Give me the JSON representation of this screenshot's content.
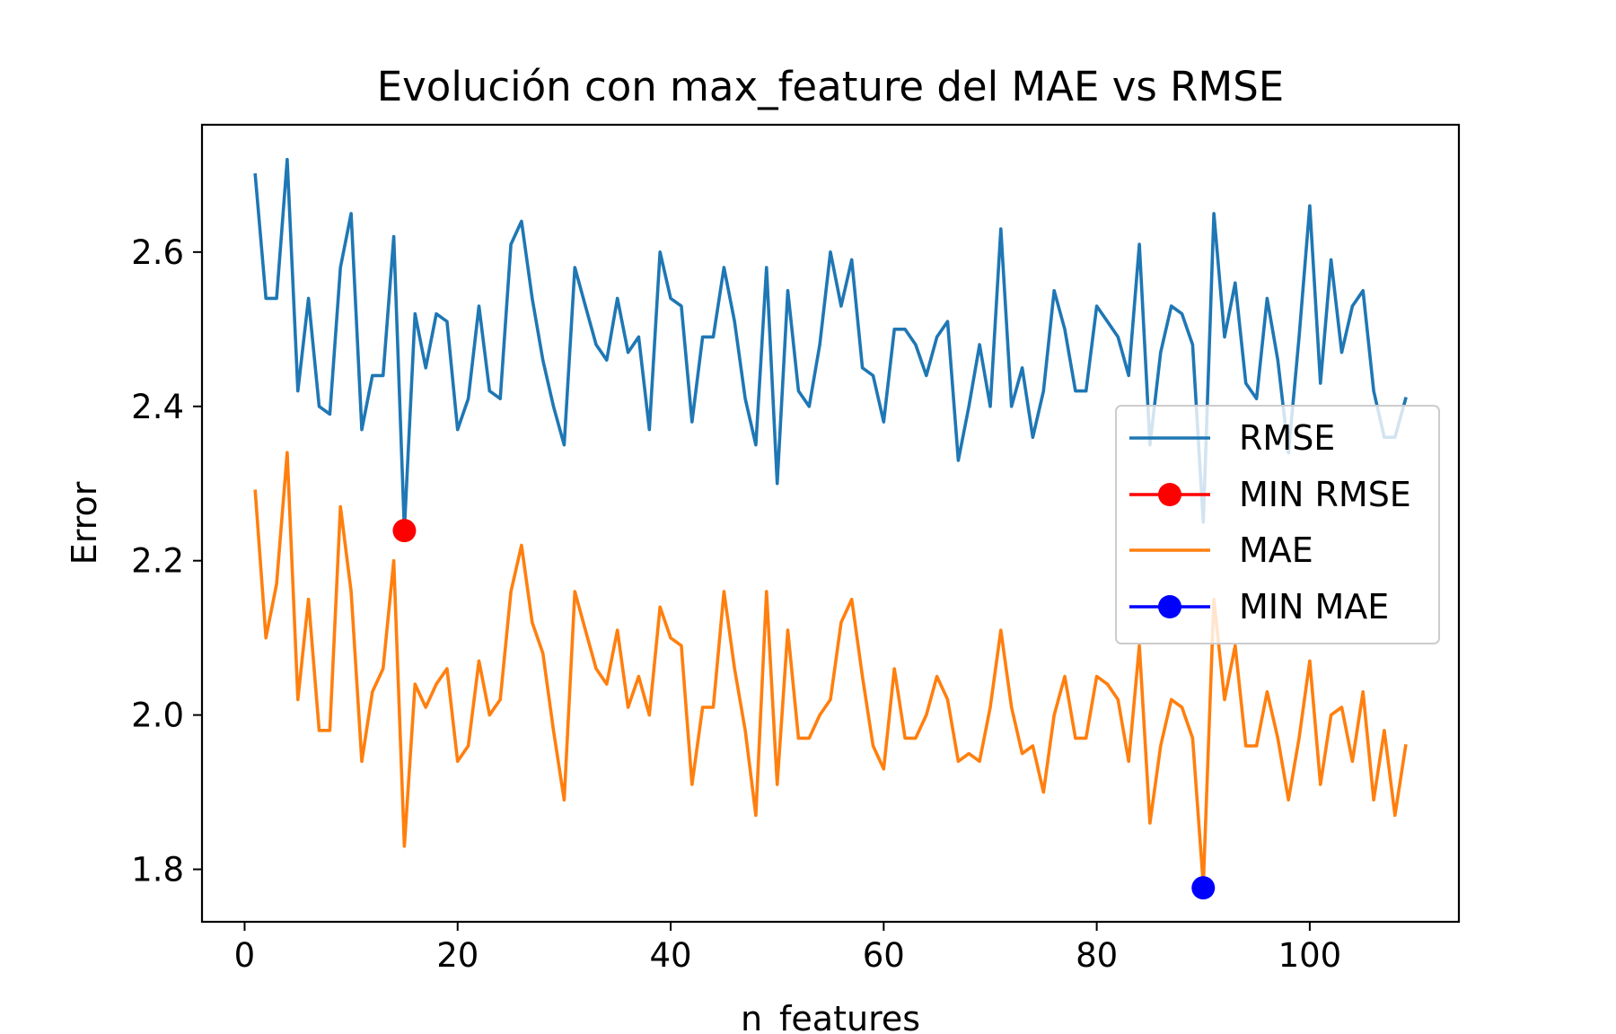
{
  "chart_data": {
    "type": "line",
    "title": "Evolución con max_feature del MAE vs RMSE",
    "xlabel": "n_features",
    "ylabel": "Error",
    "xlim": [
      -4,
      114
    ],
    "ylim": [
      1.732,
      2.765
    ],
    "xticks": [
      0,
      20,
      40,
      60,
      80,
      100
    ],
    "yticks": [
      1.8,
      2.0,
      2.2,
      2.4,
      2.6
    ],
    "ytick_labels": [
      "1.8",
      "2.0",
      "2.2",
      "2.4",
      "2.6"
    ],
    "grid": false,
    "legend_position": "center-right",
    "x": [
      1,
      2,
      3,
      4,
      5,
      6,
      7,
      8,
      9,
      10,
      11,
      12,
      13,
      14,
      15,
      16,
      17,
      18,
      19,
      20,
      21,
      22,
      23,
      24,
      25,
      26,
      27,
      28,
      29,
      30,
      31,
      32,
      33,
      34,
      35,
      36,
      37,
      38,
      39,
      40,
      41,
      42,
      43,
      44,
      45,
      46,
      47,
      48,
      49,
      50,
      51,
      52,
      53,
      54,
      55,
      56,
      57,
      58,
      59,
      60,
      61,
      62,
      63,
      64,
      65,
      66,
      67,
      68,
      69,
      70,
      71,
      72,
      73,
      74,
      75,
      76,
      77,
      78,
      79,
      80,
      81,
      82,
      83,
      84,
      85,
      86,
      87,
      88,
      89,
      90,
      91,
      92,
      93,
      94,
      95,
      96,
      97,
      98,
      99,
      100,
      101,
      102,
      103,
      104,
      105,
      106,
      107,
      108,
      109
    ],
    "series": [
      {
        "name": "RMSE",
        "color": "#1f77b4",
        "values": [
          2.7,
          2.54,
          2.54,
          2.72,
          2.42,
          2.54,
          2.4,
          2.39,
          2.58,
          2.65,
          2.37,
          2.44,
          2.44,
          2.62,
          2.24,
          2.52,
          2.45,
          2.52,
          2.51,
          2.37,
          2.41,
          2.53,
          2.42,
          2.41,
          2.61,
          2.64,
          2.54,
          2.46,
          2.4,
          2.35,
          2.58,
          2.53,
          2.48,
          2.46,
          2.54,
          2.47,
          2.49,
          2.37,
          2.6,
          2.54,
          2.53,
          2.38,
          2.49,
          2.49,
          2.58,
          2.51,
          2.41,
          2.35,
          2.58,
          2.3,
          2.55,
          2.42,
          2.4,
          2.48,
          2.6,
          2.53,
          2.59,
          2.45,
          2.44,
          2.38,
          2.5,
          2.5,
          2.48,
          2.44,
          2.49,
          2.51,
          2.33,
          2.4,
          2.48,
          2.4,
          2.63,
          2.4,
          2.45,
          2.36,
          2.42,
          2.55,
          2.5,
          2.42,
          2.42,
          2.53,
          2.51,
          2.49,
          2.44,
          2.61,
          2.35,
          2.47,
          2.53,
          2.52,
          2.48,
          2.25,
          2.65,
          2.49,
          2.56,
          2.43,
          2.41,
          2.54,
          2.46,
          2.34,
          2.49,
          2.66,
          2.43,
          2.59,
          2.47,
          2.53,
          2.55,
          2.42,
          2.36,
          2.36,
          2.41
        ]
      },
      {
        "name": "MAE",
        "color": "#ff7f0e",
        "values": [
          2.29,
          2.1,
          2.17,
          2.34,
          2.02,
          2.15,
          1.98,
          1.98,
          2.27,
          2.16,
          1.94,
          2.03,
          2.06,
          2.2,
          1.83,
          2.04,
          2.01,
          2.04,
          2.06,
          1.94,
          1.96,
          2.07,
          2.0,
          2.02,
          2.16,
          2.22,
          2.12,
          2.08,
          1.98,
          1.89,
          2.16,
          2.11,
          2.06,
          2.04,
          2.11,
          2.01,
          2.05,
          2.0,
          2.14,
          2.1,
          2.09,
          1.91,
          2.01,
          2.01,
          2.16,
          2.06,
          1.98,
          1.87,
          2.16,
          1.91,
          2.11,
          1.97,
          1.97,
          2.0,
          2.02,
          2.12,
          2.15,
          2.05,
          1.96,
          1.93,
          2.06,
          1.97,
          1.97,
          2.0,
          2.05,
          2.02,
          1.94,
          1.95,
          1.94,
          2.01,
          2.11,
          2.01,
          1.95,
          1.96,
          1.9,
          2.0,
          2.05,
          1.97,
          1.97,
          2.05,
          2.04,
          2.02,
          1.94,
          2.09,
          1.86,
          1.96,
          2.02,
          2.01,
          1.97,
          1.78,
          2.15,
          2.02,
          2.09,
          1.96,
          1.96,
          2.03,
          1.97,
          1.89,
          1.97,
          2.07,
          1.91,
          2.0,
          2.01,
          1.94,
          2.03,
          1.89,
          1.98,
          1.87,
          1.96
        ]
      }
    ],
    "markers": [
      {
        "name": "MIN RMSE",
        "color": "#ff0000",
        "x": 15,
        "y": 2.239
      },
      {
        "name": "MIN MAE",
        "color": "#0000ff",
        "x": 90,
        "y": 1.776
      }
    ],
    "legend": [
      {
        "label": "RMSE",
        "color": "#1f77b4",
        "marker": false
      },
      {
        "label": "MIN RMSE",
        "color": "#ff0000",
        "marker": true
      },
      {
        "label": "MAE",
        "color": "#ff7f0e",
        "marker": false
      },
      {
        "label": "MIN MAE",
        "color": "#0000ff",
        "marker": true
      }
    ]
  }
}
